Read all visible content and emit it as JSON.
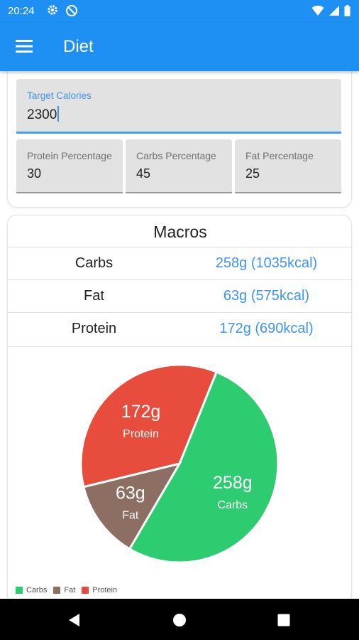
{
  "status_bar": {
    "time": "20:24",
    "bg_color": "#1e90f4"
  },
  "app_bar": {
    "title": "Diet",
    "menu_icon": "hamburger-menu-icon"
  },
  "inputs": {
    "target_calories": {
      "label": "Target Calories",
      "value": "2300"
    },
    "protein_percentage": {
      "label": "Protein Percentage",
      "value": "30"
    },
    "carbs_percentage": {
      "label": "Carbs Percentage",
      "value": "45"
    },
    "fat_percentage": {
      "label": "Fat Percentage",
      "value": "25"
    }
  },
  "macros": {
    "title": "Macros",
    "rows": [
      {
        "name": "Carbs",
        "value": "258g (1035kcal)"
      },
      {
        "name": "Fat",
        "value": "63g (575kcal)"
      },
      {
        "name": "Protein",
        "value": "172g (690kcal)"
      }
    ]
  },
  "chart_data": {
    "type": "pie",
    "series": [
      {
        "name": "Carbs",
        "value": 258,
        "label": "258g",
        "color": "#2ecc71"
      },
      {
        "name": "Fat",
        "value": 63,
        "label": "63g",
        "color": "#8d6e63"
      },
      {
        "name": "Protein",
        "value": 172,
        "label": "172g",
        "color": "#e74c3c"
      }
    ],
    "legend": [
      "Carbs",
      "Fat",
      "Protein"
    ],
    "legend_position": "bottom-left"
  },
  "colors": {
    "accent": "#1e90f4",
    "link_value": "#3f95ee"
  }
}
